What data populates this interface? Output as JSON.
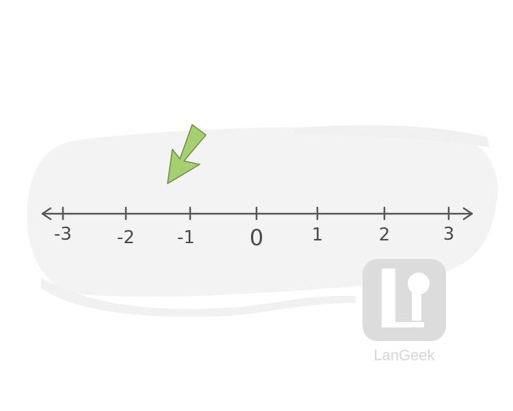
{
  "number_line": {
    "tick_labels": [
      "-3",
      "-2",
      "-1",
      "0",
      "1",
      "2",
      "3"
    ],
    "pointer_target_value": -1.5
  },
  "watermark": {
    "brand_text": "LanGeek"
  },
  "colors": {
    "blob": "#f3f3f3",
    "line": "#555555",
    "arrow_fill": "#a6cf71",
    "arrow_stroke": "#6e8f45",
    "watermark": "#dcdcdc"
  }
}
